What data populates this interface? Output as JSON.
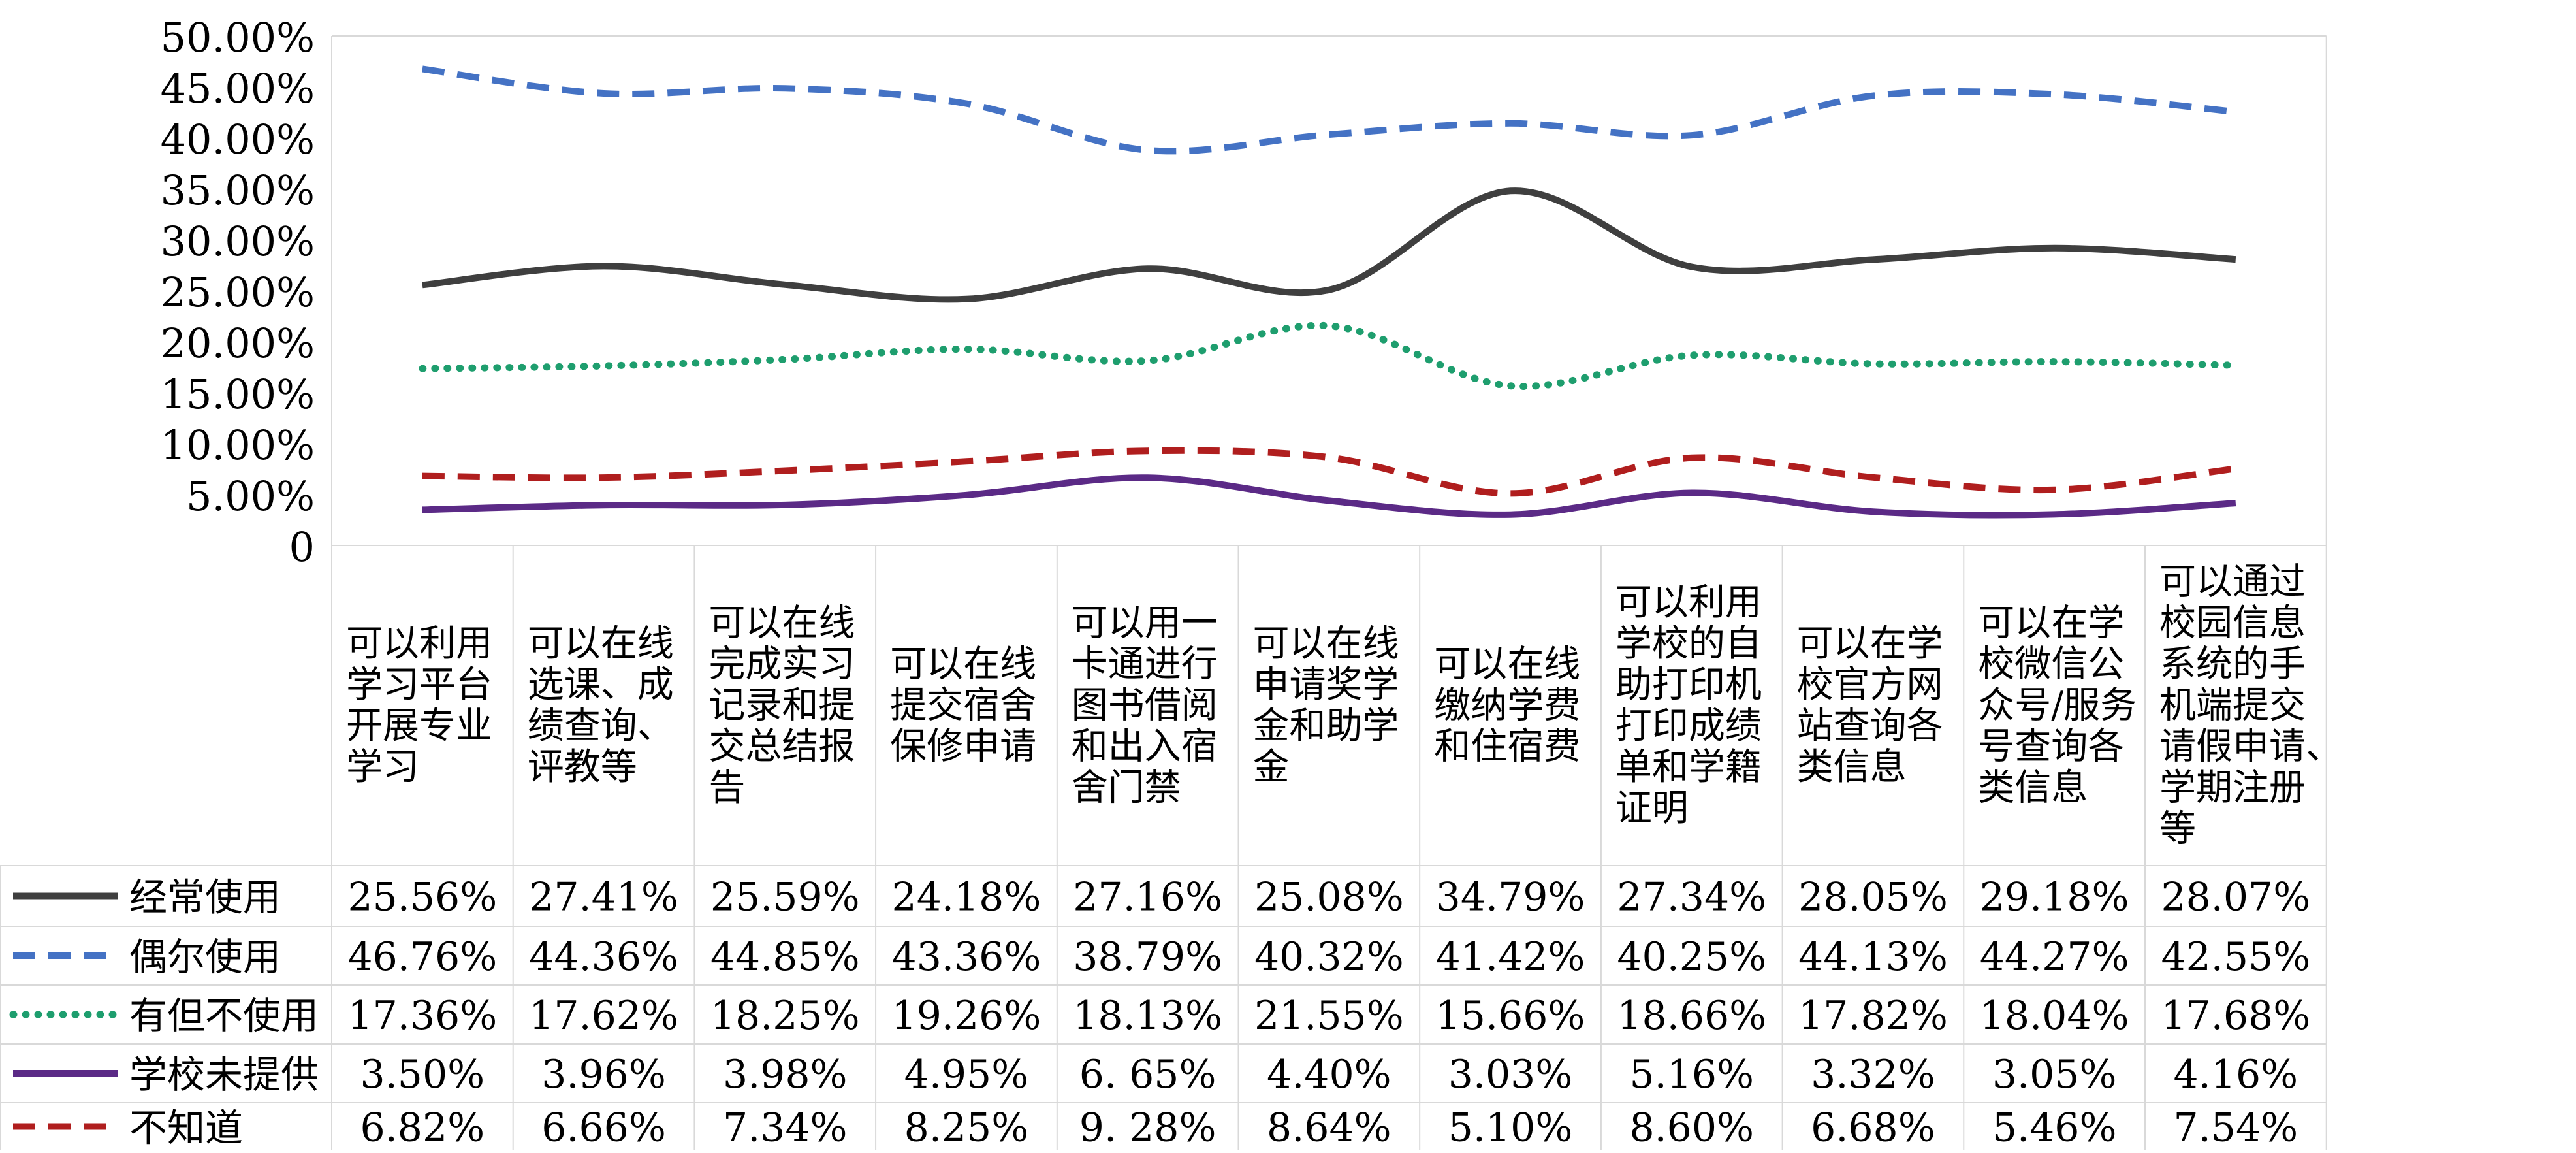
{
  "chart_data": {
    "type": "line",
    "title": "",
    "xlabel": "",
    "ylabel": "",
    "ylim": [
      0,
      50
    ],
    "yticks": [
      "50.00%",
      "45.00%",
      "40.00%",
      "35.00%",
      "30.00%",
      "25.00%",
      "20.00%",
      "15.00%",
      "10.00%",
      "5.00%",
      "0"
    ],
    "categories": [
      "可以利用学习平台开展专业学习",
      "可以在线选课、成绩查询、评教等",
      "可以在线完成实习记录和提交总结报告",
      "可以在线提交宿舍保修申请",
      "可以用一卡通进行图书借阅和出入宿舍门禁",
      "可以在线申请奖学金和助学金",
      "可以在线缴纳学费和住宿费",
      "可以利用学校的自助打印机打印成绩单和学籍证明",
      "可以在学校官方网站查询各类信息",
      "可以在学校微信公众号/服务号查询各类信息",
      "可以通过校园信息系统的手机端提交请假申请、学期注册等"
    ],
    "category_lines": [
      [
        "可以利用",
        "学习平台",
        "开展专业",
        "学习"
      ],
      [
        "可以在线",
        "选课、成",
        "绩查询、",
        "评教等"
      ],
      [
        "可以在线",
        "完成实习",
        "记录和提",
        "交总结报",
        "告"
      ],
      [
        "可以在线",
        "提交宿舍",
        "保修申请"
      ],
      [
        "可以用一",
        "卡通进行",
        "图书借阅",
        "和出入宿",
        "舍门禁"
      ],
      [
        "可以在线",
        "申请奖学",
        "金和助学",
        "金"
      ],
      [
        "可以在线",
        "缴纳学费",
        "和住宿费"
      ],
      [
        "可以利用",
        "学校的自",
        "助打印机",
        "打印成绩",
        "单和学籍",
        "证明"
      ],
      [
        "可以在学",
        "校官方网",
        "站查询各",
        "类信息"
      ],
      [
        "可以在学",
        "校微信公",
        "众号/服务",
        "号查询各",
        "类信息"
      ],
      [
        "可以通过",
        "校园信息",
        "系统的手",
        "机端提交",
        "请假申请、",
        "学期注册",
        "等"
      ]
    ],
    "series": [
      {
        "name": "经常使用",
        "color": "#3f3f3f",
        "dash": "solid",
        "values": [
          25.56,
          27.41,
          25.59,
          24.18,
          27.16,
          25.08,
          34.79,
          27.34,
          28.05,
          29.18,
          28.07
        ],
        "labels": [
          "25.56%",
          "27.41%",
          "25.59%",
          "24.18%",
          "27.16%",
          "25.08%",
          "34.79%",
          "27.34%",
          "28.05%",
          "29.18%",
          "28.07%"
        ]
      },
      {
        "name": "偶尔使用",
        "color": "#4472c4",
        "dash": "dash",
        "values": [
          46.76,
          44.36,
          44.85,
          43.36,
          38.79,
          40.32,
          41.42,
          40.25,
          44.13,
          44.27,
          42.55
        ],
        "labels": [
          "46.76%",
          "44.36%",
          "44.85%",
          "43.36%",
          "38.79%",
          "40.32%",
          "41.42%",
          "40.25%",
          "44.13%",
          "44.27%",
          "42.55%"
        ]
      },
      {
        "name": "有但不使用",
        "color": "#1e9e6e",
        "dash": "dot",
        "values": [
          17.36,
          17.62,
          18.25,
          19.26,
          18.13,
          21.55,
          15.66,
          18.66,
          17.82,
          18.04,
          17.68
        ],
        "labels": [
          "17.36%",
          "17.62%",
          "18.25%",
          "19.26%",
          "18.13%",
          "21.55%",
          "15.66%",
          "18.66%",
          "17.82%",
          "18.04%",
          "17.68%"
        ]
      },
      {
        "name": "学校未提供",
        "color": "#5b2a86",
        "dash": "solid",
        "values": [
          3.5,
          3.96,
          3.98,
          4.95,
          6.65,
          4.4,
          3.03,
          5.16,
          3.32,
          3.05,
          4.16
        ],
        "labels": [
          "3.50%",
          "3.96%",
          "3.98%",
          "4.95%",
          "6. 65%",
          "4.40%",
          "3.03%",
          "5.16%",
          "3.32%",
          "3.05%",
          "4.16%"
        ]
      },
      {
        "name": "不知道",
        "color": "#b01e1e",
        "dash": "dash",
        "values": [
          6.82,
          6.66,
          7.34,
          8.25,
          9.28,
          8.64,
          5.1,
          8.6,
          6.68,
          5.46,
          7.54
        ],
        "labels": [
          "6.82%",
          "6.66%",
          "7.34%",
          "8.25%",
          "9. 28%",
          "8.64%",
          "5.10%",
          "8.60%",
          "6.68%",
          "5.46%",
          "7.54%"
        ]
      }
    ],
    "grid": false,
    "legend": "data-table-left"
  }
}
